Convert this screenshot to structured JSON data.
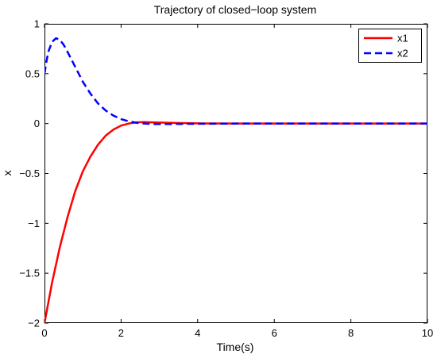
{
  "chart_data": {
    "type": "line",
    "title": "Trajectory of closed−loop system",
    "xlabel": "Time(s)",
    "ylabel": "x",
    "xlim": [
      0,
      10
    ],
    "ylim": [
      -2,
      1
    ],
    "xticks": [
      0,
      2,
      4,
      6,
      8,
      10
    ],
    "xtick_labels": [
      "0",
      "2",
      "4",
      "6",
      "8",
      "10"
    ],
    "yticks": [
      1,
      0.5,
      0,
      -0.5,
      -1,
      -1.5,
      -2
    ],
    "ytick_labels": [
      "1",
      "0.5",
      "0",
      "−0.5",
      "−1",
      "−1.5",
      "−2"
    ],
    "grid": false,
    "legend_position": "top-right",
    "series": [
      {
        "name": "x1",
        "color": "#ff0000",
        "line_style": "solid",
        "x": [
          0,
          0.2,
          0.4,
          0.6,
          0.8,
          1.0,
          1.2,
          1.4,
          1.6,
          1.8,
          2.0,
          2.2,
          2.4,
          2.6,
          2.8,
          3.0,
          3.2,
          3.5,
          4.0,
          5.0,
          6.0,
          7.0,
          8.0,
          9.0,
          10.0
        ],
        "y": [
          -2.0,
          -1.59,
          -1.24,
          -0.94,
          -0.68,
          -0.48,
          -0.33,
          -0.21,
          -0.12,
          -0.06,
          -0.02,
          0.0,
          0.012,
          0.015,
          0.012,
          0.01,
          0.008,
          0.005,
          0.002,
          0.0,
          0.0,
          0.0,
          0.0,
          0.0,
          0.0
        ]
      },
      {
        "name": "x2",
        "color": "#0000ff",
        "line_style": "dashed",
        "x": [
          0,
          0.05,
          0.1,
          0.2,
          0.3,
          0.4,
          0.5,
          0.6,
          0.8,
          1.0,
          1.2,
          1.4,
          1.6,
          1.8,
          2.0,
          2.2,
          2.4,
          2.6,
          2.8,
          3.0,
          3.5,
          4.0,
          5.0,
          6.0,
          7.0,
          8.0,
          9.0,
          10.0
        ],
        "y": [
          0.5,
          0.62,
          0.72,
          0.82,
          0.855,
          0.84,
          0.79,
          0.72,
          0.57,
          0.42,
          0.3,
          0.2,
          0.13,
          0.08,
          0.045,
          0.022,
          0.008,
          0.0,
          -0.004,
          -0.005,
          -0.004,
          -0.002,
          0.0,
          0.0,
          0.0,
          0.0,
          0.0,
          0.0
        ]
      }
    ]
  }
}
